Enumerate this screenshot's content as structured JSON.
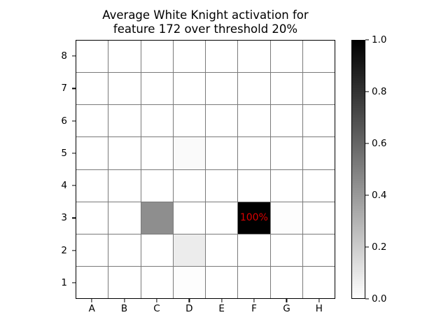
{
  "figure": {
    "title_line1": "Average White Knight activation for",
    "title_line2": "feature 172 over threshold 20%"
  },
  "chart_data": {
    "type": "heatmap",
    "title": "Average White Knight activation for feature 172 over threshold 20%",
    "colormap": "Greys",
    "x_categories": [
      "A",
      "B",
      "C",
      "D",
      "E",
      "F",
      "G",
      "H"
    ],
    "y_categories_top_to_bottom": [
      "8",
      "7",
      "6",
      "5",
      "4",
      "3",
      "2",
      "1"
    ],
    "value_range": [
      0,
      1
    ],
    "grid": true,
    "gridline_color": "#7a7a7a",
    "border_color": "#000000",
    "default_cell": {
      "value": 0,
      "color": "#ffffff"
    },
    "cells": [
      {
        "square": "C3",
        "value": 0.44,
        "color": "#8e8e8e"
      },
      {
        "square": "F3",
        "value": 1.0,
        "color": "#000000",
        "label": "100%",
        "label_color": "#dd0000"
      },
      {
        "square": "D2",
        "value": 0.08,
        "color": "#ececec"
      },
      {
        "square": "D5",
        "value": 0.02,
        "color": "#fafafa"
      },
      {
        "square": "D1",
        "value": 0.01,
        "color": "#fdfdfd"
      },
      {
        "square": "G3",
        "value": 0.01,
        "color": "#fdfdfd"
      }
    ],
    "annotations": [
      {
        "square": "F3",
        "text": "100%",
        "color": "#dd0000"
      }
    ],
    "colorbar": {
      "min": 0.0,
      "max": 1.0,
      "tick_values": [
        1.0,
        0.8,
        0.6,
        0.4,
        0.2,
        0.0
      ],
      "top_color": "#000000",
      "bottom_color": "#ffffff",
      "position": "right"
    }
  }
}
